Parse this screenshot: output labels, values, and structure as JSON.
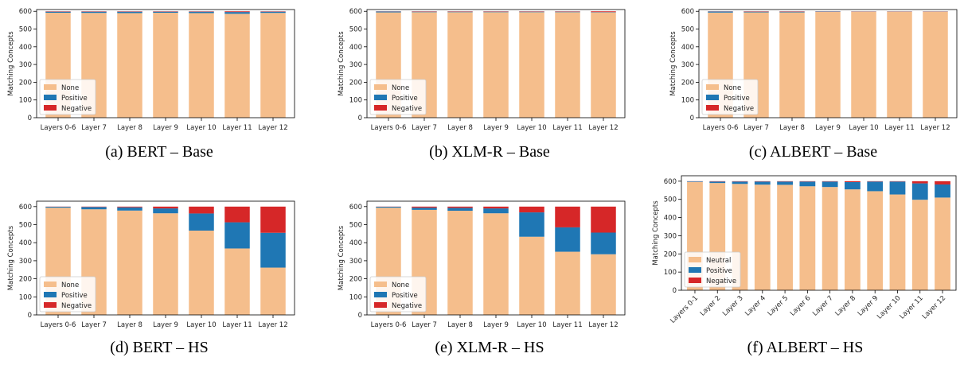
{
  "colors": {
    "none": "#f5be8c",
    "positive": "#1f77b4",
    "negative": "#d62728"
  },
  "chart_data": [
    {
      "type": "bar",
      "caption": "(a) BERT – Base",
      "ylabel": "Matching Concepts",
      "ylim": [
        0,
        610
      ],
      "yticks": [
        0,
        100,
        200,
        300,
        400,
        500,
        600
      ],
      "categories": [
        "Layers 0-6",
        "Layer 7",
        "Layer 8",
        "Layer 9",
        "Layer 10",
        "Layer 11",
        "Layer 12"
      ],
      "legend_placement": "lower-left",
      "series": [
        {
          "name": "None",
          "values": [
            592,
            591,
            590,
            592,
            590,
            586,
            591
          ]
        },
        {
          "name": "Positive",
          "values": [
            6,
            7,
            8,
            6,
            8,
            10,
            7
          ]
        },
        {
          "name": "Negative",
          "values": [
            2,
            2,
            2,
            2,
            2,
            4,
            2
          ]
        }
      ]
    },
    {
      "type": "bar",
      "caption": "(b) XLM-R – Base",
      "ylabel": "Matching Concepts",
      "ylim": [
        0,
        610
      ],
      "yticks": [
        0,
        100,
        200,
        300,
        400,
        500,
        600
      ],
      "categories": [
        "Layers 0-6",
        "Layer 7",
        "Layer 8",
        "Layer 9",
        "Layer 10",
        "Layer 11",
        "Layer 12"
      ],
      "legend_placement": "lower-left",
      "series": [
        {
          "name": "None",
          "values": [
            594,
            595,
            595,
            595,
            595,
            595,
            594
          ]
        },
        {
          "name": "Positive",
          "values": [
            5,
            3,
            3,
            3,
            3,
            3,
            2
          ]
        },
        {
          "name": "Negative",
          "values": [
            1,
            2,
            2,
            2,
            2,
            2,
            4
          ]
        }
      ]
    },
    {
      "type": "bar",
      "caption": "(c) ALBERT – Base",
      "ylabel": "Matching Concepts",
      "ylim": [
        0,
        610
      ],
      "yticks": [
        0,
        100,
        200,
        300,
        400,
        500,
        600
      ],
      "categories": [
        "Layers 0-6",
        "Layer 7",
        "Layer 8",
        "Layer 9",
        "Layer 10",
        "Layer 11",
        "Layer 12"
      ],
      "legend_placement": "lower-left",
      "series": [
        {
          "name": "None",
          "values": [
            593,
            594,
            594,
            597,
            598,
            598,
            598
          ]
        },
        {
          "name": "Positive",
          "values": [
            6,
            4,
            4,
            2,
            1,
            1,
            1
          ]
        },
        {
          "name": "Negative",
          "values": [
            1,
            2,
            2,
            1,
            1,
            1,
            1
          ]
        }
      ]
    },
    {
      "type": "bar",
      "caption": "(d) BERT – HS",
      "ylabel": "Matching Concepts",
      "ylim": [
        0,
        630
      ],
      "yticks": [
        0,
        100,
        200,
        300,
        400,
        500,
        600
      ],
      "categories": [
        "Layers 0-6",
        "Layer 7",
        "Layer 8",
        "Layer 9",
        "Layer 10",
        "Layer 11",
        "Layer 12"
      ],
      "legend_placement": "lower-left",
      "series": [
        {
          "name": "None",
          "values": [
            594,
            585,
            578,
            563,
            467,
            368,
            262
          ]
        },
        {
          "name": "Positive",
          "values": [
            5,
            13,
            18,
            27,
            95,
            145,
            193
          ]
        },
        {
          "name": "Negative",
          "values": [
            1,
            2,
            4,
            10,
            38,
            87,
            145
          ]
        }
      ]
    },
    {
      "type": "bar",
      "caption": "(e) XLM-R – HS",
      "ylabel": "Matching Concepts",
      "ylim": [
        0,
        630
      ],
      "yticks": [
        0,
        100,
        200,
        300,
        400,
        500,
        600
      ],
      "categories": [
        "Layers 0-6",
        "Layer 7",
        "Layer 8",
        "Layer 9",
        "Layer 10",
        "Layer 11",
        "Layer 12"
      ],
      "legend_placement": "lower-left",
      "series": [
        {
          "name": "None",
          "values": [
            594,
            582,
            577,
            563,
            433,
            350,
            336
          ]
        },
        {
          "name": "Positive",
          "values": [
            5,
            12,
            16,
            27,
            135,
            135,
            120
          ]
        },
        {
          "name": "Negative",
          "values": [
            1,
            6,
            7,
            10,
            32,
            115,
            144
          ]
        }
      ]
    },
    {
      "type": "bar",
      "caption": "(f) ALBERT – HS",
      "ylabel": "Matching Concepts",
      "ylim": [
        0,
        630
      ],
      "yticks": [
        0,
        100,
        200,
        300,
        400,
        500,
        600
      ],
      "categories": [
        "Layers 0-1",
        "Layer 2",
        "Layer 3",
        "Layer 4",
        "Layer 5",
        "Layer 6",
        "Layer 7",
        "Layer 8",
        "Layer 9",
        "Layer 10",
        "Layer 11",
        "Layer 12"
      ],
      "legend_placement": "lower-left",
      "series": [
        {
          "name": "Neutral",
          "values": [
            596,
            590,
            585,
            581,
            580,
            572,
            568,
            555,
            545,
            527,
            498,
            510
          ]
        },
        {
          "name": "Positive",
          "values": [
            3,
            8,
            13,
            17,
            18,
            26,
            30,
            40,
            53,
            71,
            90,
            72
          ]
        },
        {
          "name": "Negative",
          "values": [
            1,
            2,
            2,
            2,
            2,
            2,
            2,
            5,
            2,
            2,
            12,
            18
          ]
        }
      ]
    }
  ]
}
